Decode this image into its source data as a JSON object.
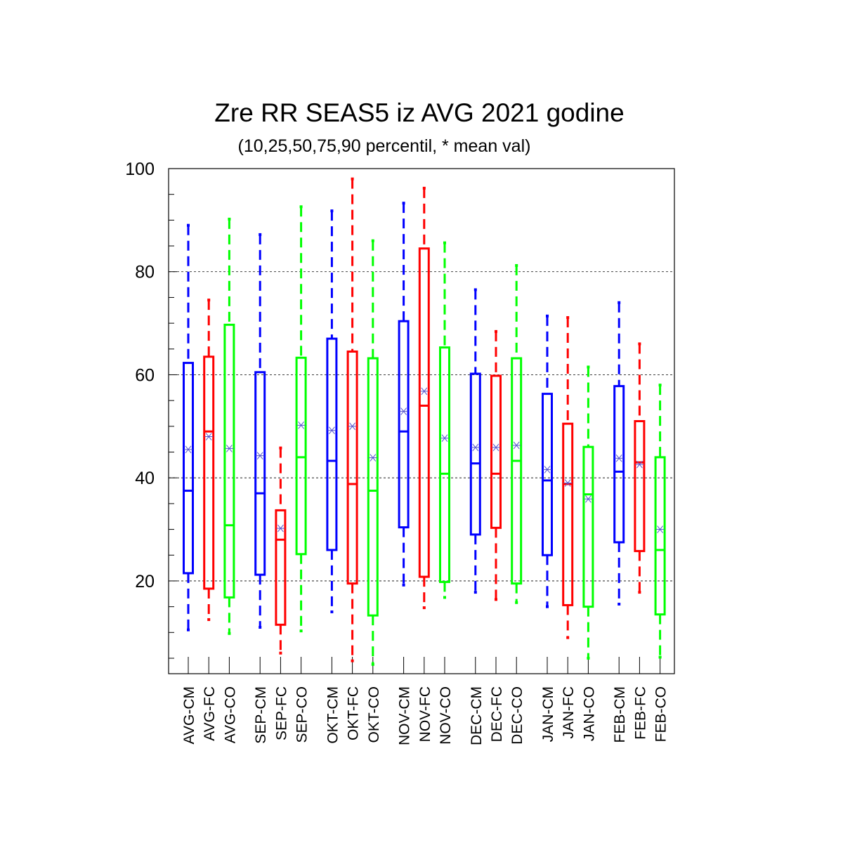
{
  "chart_data": {
    "type": "box",
    "title": "Zre RR SEAS5 iz AVG 2021 godine",
    "subtitle": "(10,25,50,75,90 percentil, * mean val)",
    "xlabel": "",
    "ylabel": "",
    "ylim": [
      2,
      100
    ],
    "yticks": [
      20,
      40,
      60,
      80,
      100
    ],
    "grid": "horizontal-dashed",
    "colors": {
      "CM": "#0000ff",
      "FC": "#ff0000",
      "CO": "#00ff00",
      "mean_marker": "#5555cc"
    },
    "categories": [
      "AVG-CM",
      "AVG-FC",
      "AVG-CO",
      "SEP-CM",
      "SEP-FC",
      "SEP-CO",
      "OKT-CM",
      "OKT-FC",
      "OKT-CO",
      "NOV-CM",
      "NOV-FC",
      "NOV-CO",
      "DEC-CM",
      "DEC-FC",
      "DEC-CO",
      "JAN-CM",
      "JAN-FC",
      "JAN-CO",
      "FEB-CM",
      "FEB-FC",
      "FEB-CO"
    ],
    "boxes": [
      {
        "p10": 10.5,
        "p25": 21.5,
        "p50": 37.5,
        "p75": 62.3,
        "p90": 89.0,
        "mean": 45.5
      },
      {
        "p10": 12.5,
        "p25": 18.5,
        "p50": 49.0,
        "p75": 63.5,
        "p90": 74.5,
        "mean": 48.0
      },
      {
        "p10": 9.8,
        "p25": 16.8,
        "p50": 30.8,
        "p75": 69.7,
        "p90": 90.2,
        "mean": 45.7
      },
      {
        "p10": 11.0,
        "p25": 21.2,
        "p50": 37.0,
        "p75": 60.5,
        "p90": 87.2,
        "mean": 44.3
      },
      {
        "p10": 6.0,
        "p25": 11.5,
        "p50": 28.0,
        "p75": 33.7,
        "p90": 45.8,
        "mean": 30.2
      },
      {
        "p10": 10.3,
        "p25": 25.2,
        "p50": 44.0,
        "p75": 63.3,
        "p90": 92.6,
        "mean": 50.2
      },
      {
        "p10": 14.0,
        "p25": 26.0,
        "p50": 43.3,
        "p75": 67.0,
        "p90": 91.8,
        "mean": 49.2
      },
      {
        "p10": 4.5,
        "p25": 19.5,
        "p50": 38.8,
        "p75": 64.5,
        "p90": 98.0,
        "mean": 50.0
      },
      {
        "p10": 3.8,
        "p25": 13.3,
        "p50": 37.5,
        "p75": 63.2,
        "p90": 86.0,
        "mean": 43.9
      },
      {
        "p10": 19.2,
        "p25": 30.4,
        "p50": 49.0,
        "p75": 70.4,
        "p90": 93.3,
        "mean": 52.9
      },
      {
        "p10": 14.8,
        "p25": 20.8,
        "p50": 54.0,
        "p75": 84.5,
        "p90": 96.2,
        "mean": 56.8
      },
      {
        "p10": 16.8,
        "p25": 19.8,
        "p50": 40.8,
        "p75": 65.3,
        "p90": 85.6,
        "mean": 47.7
      },
      {
        "p10": 17.8,
        "p25": 29.0,
        "p50": 42.8,
        "p75": 60.2,
        "p90": 76.5,
        "mean": 45.9
      },
      {
        "p10": 16.4,
        "p25": 30.3,
        "p50": 40.8,
        "p75": 59.8,
        "p90": 68.4,
        "mean": 45.9
      },
      {
        "p10": 15.8,
        "p25": 19.5,
        "p50": 43.3,
        "p75": 63.2,
        "p90": 81.2,
        "mean": 46.3
      },
      {
        "p10": 15.0,
        "p25": 25.0,
        "p50": 39.5,
        "p75": 56.3,
        "p90": 71.4,
        "mean": 41.6
      },
      {
        "p10": 9.0,
        "p25": 15.3,
        "p50": 38.8,
        "p75": 50.5,
        "p90": 71.1,
        "mean": 39.0
      },
      {
        "p10": 5.0,
        "p25": 15.0,
        "p50": 36.8,
        "p75": 46.0,
        "p90": 61.5,
        "mean": 35.9
      },
      {
        "p10": 15.5,
        "p25": 27.5,
        "p50": 41.2,
        "p75": 57.8,
        "p90": 74.0,
        "mean": 43.8
      },
      {
        "p10": 17.8,
        "p25": 25.8,
        "p50": 43.0,
        "p75": 51.0,
        "p90": 66.0,
        "mean": 42.6
      },
      {
        "p10": 5.2,
        "p25": 13.5,
        "p50": 26.0,
        "p75": 44.0,
        "p90": 58.0,
        "mean": 30.0
      }
    ]
  }
}
